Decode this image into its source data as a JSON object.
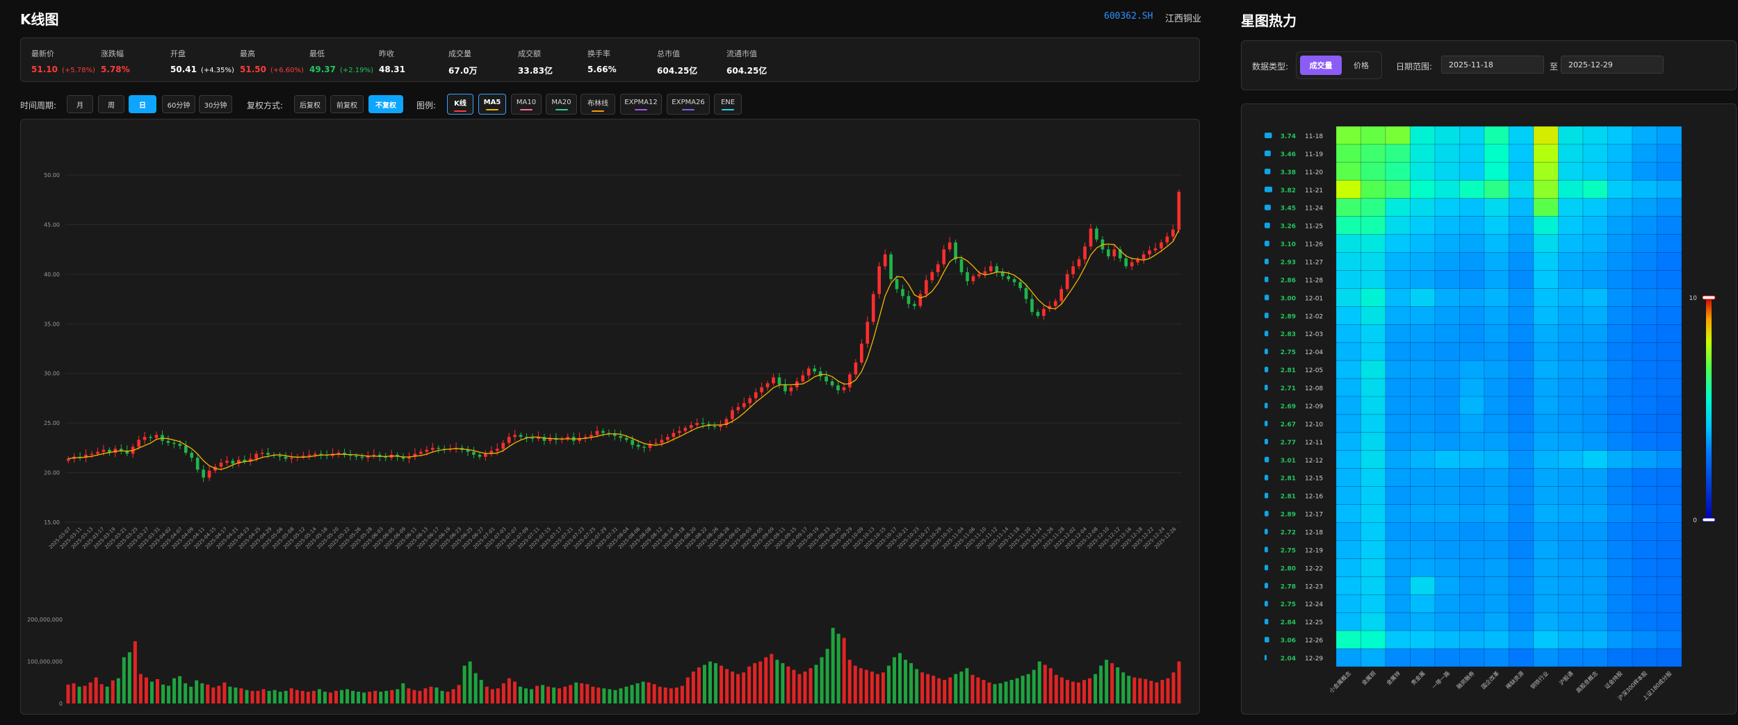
{
  "left_title": "K线图",
  "right_title": "星图热力",
  "stock": {
    "code": "600362.SH",
    "name": "江西铜业"
  },
  "stats": [
    {
      "label": "最新价",
      "value": "51.10",
      "change": "(+5.78%)",
      "color": "red"
    },
    {
      "label": "涨跌幅",
      "value": "5.78%",
      "change": "",
      "color": "red"
    },
    {
      "label": "开盘",
      "value": "50.41",
      "change": "(+4.35%)",
      "color": "white"
    },
    {
      "label": "最高",
      "value": "51.50",
      "change": "(+6.60%)",
      "color": "red"
    },
    {
      "label": "最低",
      "value": "49.37",
      "change": "(+2.19%)",
      "color": "green"
    },
    {
      "label": "昨收",
      "value": "48.31",
      "change": "",
      "color": "white"
    },
    {
      "label": "成交量",
      "value": "67.0万",
      "change": "",
      "color": "white"
    },
    {
      "label": "成交额",
      "value": "33.83亿",
      "change": "",
      "color": "white"
    },
    {
      "label": "换手率",
      "value": "5.66%",
      "change": "",
      "color": "white"
    },
    {
      "label": "总市值",
      "value": "604.25亿",
      "change": "",
      "color": "white"
    },
    {
      "label": "流通市值",
      "value": "604.25亿",
      "change": "",
      "color": "white"
    }
  ],
  "toolbar": {
    "period_label": "时间周期:",
    "periods": [
      "月",
      "周",
      "日",
      "60分钟",
      "30分钟"
    ],
    "period_active": "日",
    "adjust_label": "复权方式:",
    "adjusts": [
      "后复权",
      "前复权",
      "不复权"
    ],
    "adjust_active": "不复权",
    "legend_label": "图例:",
    "legends": [
      {
        "label": "K线",
        "color": "#ff3b3b",
        "active": true
      },
      {
        "label": "MA5",
        "color": "#f5b800",
        "active": true
      },
      {
        "label": "MA10",
        "color": "#ff6b9d",
        "active": false
      },
      {
        "label": "MA20",
        "color": "#22d3a0",
        "active": false
      },
      {
        "label": "布林线",
        "color": "#f59e0b",
        "active": false
      },
      {
        "label": "EXPMA12",
        "color": "#a855f7",
        "active": false
      },
      {
        "label": "EXPMA26",
        "color": "#8b5cf6",
        "active": false
      },
      {
        "label": "ENE",
        "color": "#22d3ee",
        "active": false
      }
    ]
  },
  "kline_axis": {
    "y_ticks": [
      "50.00",
      "45.00",
      "40.00",
      "35.00",
      "30.00",
      "25.00",
      "20.00",
      "15.00"
    ],
    "ylim": [
      15,
      50
    ]
  },
  "volume_axis": {
    "y_ticks": [
      "200,000,000",
      "100,000,000",
      "0"
    ],
    "ylim": [
      0,
      200000000
    ]
  },
  "heatmap_filters": {
    "type_label": "数据类型:",
    "type_options": [
      "成交量",
      "价格"
    ],
    "type_active": "成交量",
    "range_label": "日期范围:",
    "range_sep": "至",
    "start_date": "2025-11-18",
    "end_date": "2025-12-29"
  },
  "chart_data": [
    {
      "type": "candlestick",
      "title": "",
      "x_tick_labels": [
        "2025-03-07",
        "2025-03-11",
        "2025-03-13",
        "2025-03-17",
        "2025-03-19",
        "2025-03-21",
        "2025-03-25",
        "2025-03-27",
        "2025-03-31",
        "2025-04-02",
        "2025-04-07",
        "2025-04-09",
        "2025-04-11",
        "2025-04-15",
        "2025-04-17",
        "2025-04-21",
        "2025-04-23",
        "2025-04-25",
        "2025-04-29",
        "2025-05-06",
        "2025-05-08",
        "2025-05-12",
        "2025-05-14",
        "2025-05-16",
        "2025-05-20",
        "2025-05-22",
        "2025-05-26",
        "2025-05-28",
        "2025-06-03",
        "2025-06-05",
        "2025-06-09",
        "2025-06-11",
        "2025-06-13",
        "2025-06-17",
        "2025-06-19",
        "2025-06-23",
        "2025-06-25",
        "2025-06-27",
        "2025-07-01",
        "2025-07-03",
        "2025-07-07",
        "2025-07-09",
        "2025-07-11",
        "2025-07-15",
        "2025-07-17",
        "2025-07-21",
        "2025-07-23",
        "2025-07-25",
        "2025-07-29",
        "2025-07-31",
        "2025-08-04",
        "2025-08-06",
        "2025-08-08",
        "2025-08-12",
        "2025-08-14",
        "2025-08-18",
        "2025-08-20",
        "2025-08-22",
        "2025-08-26",
        "2025-08-28",
        "2025-09-01",
        "2025-09-03",
        "2025-09-05",
        "2025-09-09",
        "2025-09-11",
        "2025-09-15",
        "2025-09-17",
        "2025-09-19",
        "2025-09-23",
        "2025-09-25",
        "2025-09-29",
        "2025-10-09",
        "2025-10-13",
        "2025-10-15",
        "2025-10-17",
        "2025-10-21",
        "2025-10-23",
        "2025-10-27",
        "2025-10-29",
        "2025-10-31",
        "2025-11-04",
        "2025-11-06",
        "2025-11-10",
        "2025-11-12",
        "2025-11-14",
        "2025-11-18",
        "2025-11-20",
        "2025-11-24",
        "2025-11-26",
        "2025-11-28",
        "2025-12-02",
        "2025-12-04",
        "2025-12-08",
        "2025-12-10",
        "2025-12-12",
        "2025-12-16",
        "2025-12-18",
        "2025-12-22",
        "2025-12-24",
        "2025-12-26"
      ],
      "close": [
        21.4,
        21.6,
        21.5,
        21.8,
        21.9,
        22.1,
        22.3,
        22.0,
        22.4,
        22.2,
        21.9,
        22.6,
        23.3,
        23.6,
        23.5,
        23.8,
        23.2,
        23.0,
        22.9,
        22.7,
        22.0,
        21.5,
        20.3,
        19.5,
        20.2,
        20.6,
        21.0,
        21.2,
        20.9,
        21.3,
        21.1,
        21.4,
        21.9,
        22.0,
        21.8,
        21.7,
        21.6,
        21.4,
        21.5,
        21.6,
        21.7,
        21.8,
        21.9,
        21.8,
        21.7,
        21.9,
        22.0,
        21.8,
        21.7,
        21.6,
        21.5,
        21.7,
        21.8,
        21.6,
        21.5,
        21.8,
        21.6,
        21.4,
        21.6,
        21.9,
        22.1,
        22.3,
        22.5,
        22.4,
        22.3,
        22.4,
        22.5,
        22.3,
        22.1,
        21.8,
        21.6,
        21.9,
        22.2,
        22.4,
        23.0,
        23.6,
        23.8,
        23.6,
        23.5,
        23.4,
        23.6,
        23.2,
        23.5,
        23.3,
        23.4,
        23.6,
        23.2,
        23.5,
        23.6,
        23.8,
        24.2,
        24.0,
        23.9,
        23.7,
        23.5,
        23.3,
        22.8,
        22.6,
        22.5,
        22.9,
        23.0,
        23.3,
        23.6,
        24.0,
        24.2,
        24.5,
        24.8,
        25.0,
        24.9,
        24.7,
        24.6,
        24.8,
        25.4,
        26.3,
        26.6,
        27.0,
        27.5,
        28.1,
        28.6,
        29.0,
        29.6,
        28.9,
        28.2,
        28.6,
        29.2,
        29.8,
        30.5,
        30.2,
        29.7,
        29.2,
        28.8,
        28.3,
        28.6,
        29.9,
        31.1,
        33.0,
        35.2,
        38.0,
        40.8,
        42.0,
        39.5,
        38.5,
        37.8,
        37.0,
        36.8,
        38.0,
        39.4,
        40.2,
        41.0,
        42.5,
        43.2,
        41.5,
        40.2,
        39.3,
        39.8,
        40.0,
        40.3,
        40.8,
        40.2,
        39.8,
        39.5,
        39.2,
        38.6,
        37.5,
        36.2,
        35.8,
        36.5,
        36.8,
        37.3,
        38.5,
        40.0,
        40.8,
        41.5,
        42.8,
        44.6,
        43.5,
        42.5,
        41.8,
        42.5,
        41.6,
        40.8,
        41.2,
        41.5,
        42.0,
        42.4,
        42.6,
        43.2,
        43.8,
        44.5,
        48.3
      ]
    },
    {
      "type": "bar",
      "title": "",
      "series": [
        {
          "values": [
            45,
            48,
            40,
            42,
            50,
            62,
            46,
            40,
            55,
            60,
            110,
            122,
            148,
            70,
            62,
            52,
            58,
            45,
            42,
            60,
            65,
            48,
            40,
            55,
            48,
            45,
            38,
            42,
            50,
            40,
            38,
            36,
            32,
            30,
            30,
            34,
            30,
            32,
            28,
            30,
            36,
            32,
            30,
            28,
            30,
            34,
            28,
            26,
            30,
            32,
            34,
            30,
            28,
            26,
            28,
            30,
            28,
            30,
            32,
            34,
            48,
            36,
            32,
            30,
            36,
            40,
            38,
            30,
            28,
            34,
            44,
            90,
            100,
            72,
            56,
            40,
            34,
            36,
            48,
            60,
            52,
            40,
            36,
            34,
            42,
            44,
            40,
            38,
            36,
            40,
            44,
            50,
            48,
            46,
            40,
            38,
            36,
            34,
            32,
            36,
            40,
            44,
            48,
            52,
            50,
            46,
            40,
            38,
            36,
            38,
            42,
            62,
            76,
            86,
            92,
            100,
            96,
            90,
            82,
            76,
            70,
            74,
            88,
            96,
            100,
            110,
            118,
            104,
            96,
            88,
            80,
            70,
            76,
            84,
            92,
            110,
            130,
            180,
            166,
            156,
            104,
            90,
            84,
            80,
            76,
            70,
            74,
            90,
            110,
            120,
            104,
            96,
            82,
            74,
            70,
            66,
            60,
            56,
            62,
            70,
            76,
            84,
            68,
            62,
            56,
            50,
            46,
            48,
            52,
            56,
            60,
            66,
            70,
            80,
            100,
            92,
            84,
            68,
            62,
            56,
            52,
            50,
            56,
            60,
            70,
            90,
            104,
            96,
            86,
            74,
            66,
            62,
            60,
            58,
            54,
            50,
            56,
            60,
            74,
            100
          ]
        }
      ]
    },
    {
      "type": "heatmap",
      "title": "",
      "rows": [
        "11-18",
        "11-19",
        "11-20",
        "11-21",
        "11-24",
        "11-25",
        "11-26",
        "11-27",
        "11-28",
        "12-01",
        "12-02",
        "12-03",
        "12-04",
        "12-05",
        "12-08",
        "12-09",
        "12-10",
        "12-11",
        "12-12",
        "12-15",
        "12-16",
        "12-17",
        "12-18",
        "12-19",
        "12-22",
        "12-23",
        "12-24",
        "12-25",
        "12-26",
        "12-29"
      ],
      "row_values": [
        "3.74",
        "3.46",
        "3.38",
        "3.82",
        "3.45",
        "3.26",
        "3.10",
        "2.93",
        "2.86",
        "3.00",
        "2.89",
        "2.83",
        "2.75",
        "2.81",
        "2.71",
        "2.69",
        "2.67",
        "2.77",
        "3.01",
        "2.81",
        "2.81",
        "2.89",
        "2.72",
        "2.75",
        "2.80",
        "2.78",
        "2.75",
        "2.84",
        "3.06",
        "2.04"
      ],
      "columns": [
        "小金属概念",
        "金属铜",
        "金属锌",
        "贵金属",
        "一带一路",
        "融资融券",
        "国企改革",
        "稀缺资源",
        "铜铁行业",
        "沪股通",
        "高股息概念",
        "证金持股",
        "沪深300样本股",
        "上证180成分股"
      ],
      "scale": {
        "min": 0,
        "max": 10,
        "min_label": "0",
        "max_label": "10"
      },
      "values": [
        [
          7.2,
          7.0,
          7.2,
          5.2,
          4.8,
          4.5,
          5.8,
          4.4,
          8.2,
          4.8,
          4.5,
          4.2,
          3.8,
          3.6
        ],
        [
          6.8,
          6.5,
          6.2,
          5.0,
          4.6,
          4.4,
          5.5,
          4.2,
          7.8,
          4.6,
          4.4,
          4.0,
          3.6,
          3.4
        ],
        [
          6.9,
          6.4,
          6.0,
          4.9,
          4.5,
          4.3,
          5.4,
          4.1,
          7.6,
          4.5,
          4.3,
          3.9,
          3.5,
          3.3
        ],
        [
          8.0,
          6.8,
          6.5,
          5.5,
          5.0,
          5.6,
          6.2,
          4.6,
          7.4,
          5.2,
          5.6,
          4.3,
          4.0,
          3.8
        ],
        [
          6.5,
          6.2,
          5.0,
          4.6,
          4.3,
          4.1,
          4.6,
          4.0,
          6.9,
          4.4,
          4.2,
          3.8,
          3.6,
          3.4
        ],
        [
          5.8,
          5.8,
          4.6,
          4.3,
          4.0,
          3.9,
          4.3,
          3.8,
          5.2,
          4.2,
          4.0,
          3.6,
          3.4,
          3.2
        ],
        [
          4.8,
          4.9,
          4.2,
          4.0,
          3.8,
          3.7,
          4.0,
          3.6,
          4.6,
          4.0,
          3.9,
          3.5,
          3.3,
          3.1
        ],
        [
          4.5,
          4.6,
          3.9,
          3.8,
          3.6,
          3.5,
          3.8,
          3.4,
          4.3,
          3.8,
          3.7,
          3.4,
          3.2,
          3.0
        ],
        [
          4.4,
          4.5,
          3.8,
          3.7,
          3.5,
          3.4,
          3.7,
          3.3,
          4.2,
          3.7,
          3.6,
          3.3,
          3.1,
          3.0
        ],
        [
          4.6,
          5.2,
          4.0,
          4.4,
          3.8,
          3.7,
          3.9,
          3.5,
          4.1,
          3.9,
          4.0,
          3.4,
          3.2,
          3.1
        ],
        [
          4.2,
          4.8,
          3.8,
          3.8,
          3.6,
          3.5,
          3.7,
          3.4,
          4.0,
          3.7,
          3.8,
          3.3,
          3.1,
          3.0
        ],
        [
          4.0,
          4.4,
          3.6,
          3.6,
          3.5,
          3.4,
          3.6,
          3.3,
          3.8,
          3.6,
          3.6,
          3.2,
          3.0,
          2.9
        ],
        [
          3.9,
          4.3,
          3.5,
          3.5,
          3.4,
          3.4,
          3.5,
          3.2,
          3.7,
          3.5,
          3.5,
          3.1,
          3.0,
          2.9
        ],
        [
          4.0,
          4.8,
          3.6,
          3.6,
          3.5,
          3.7,
          3.6,
          3.3,
          3.8,
          3.6,
          3.6,
          3.2,
          3.0,
          2.9
        ],
        [
          3.9,
          4.6,
          3.5,
          3.5,
          3.4,
          3.8,
          3.5,
          3.2,
          3.7,
          3.5,
          3.5,
          3.1,
          3.0,
          2.9
        ],
        [
          3.8,
          4.5,
          3.5,
          3.5,
          3.4,
          3.9,
          3.5,
          3.2,
          3.7,
          3.5,
          3.4,
          3.1,
          3.0,
          2.8
        ],
        [
          3.8,
          4.4,
          3.5,
          3.5,
          3.4,
          3.7,
          3.5,
          3.2,
          3.6,
          3.5,
          3.4,
          3.1,
          2.9,
          2.8
        ],
        [
          3.9,
          4.5,
          3.5,
          3.6,
          3.5,
          3.6,
          3.6,
          3.3,
          3.7,
          3.6,
          3.5,
          3.2,
          3.0,
          2.9
        ],
        [
          4.0,
          4.6,
          3.7,
          3.9,
          4.1,
          4.0,
          3.9,
          3.4,
          3.9,
          4.0,
          4.3,
          3.8,
          3.6,
          3.4
        ],
        [
          3.9,
          4.4,
          3.6,
          3.6,
          3.6,
          3.5,
          3.6,
          3.3,
          3.7,
          3.6,
          3.6,
          3.2,
          3.0,
          2.9
        ],
        [
          3.9,
          4.3,
          3.5,
          3.6,
          3.6,
          3.5,
          3.6,
          3.3,
          3.7,
          3.6,
          3.6,
          3.2,
          3.0,
          2.9
        ],
        [
          4.0,
          4.4,
          3.6,
          3.7,
          3.7,
          3.6,
          3.7,
          3.3,
          3.8,
          3.7,
          3.7,
          3.3,
          3.1,
          3.0
        ],
        [
          3.8,
          4.3,
          3.5,
          3.5,
          3.5,
          3.4,
          3.5,
          3.2,
          3.6,
          3.5,
          3.5,
          3.1,
          3.0,
          2.9
        ],
        [
          3.9,
          4.3,
          3.6,
          3.6,
          3.5,
          3.5,
          3.5,
          3.2,
          3.7,
          3.5,
          3.5,
          3.2,
          3.0,
          2.9
        ],
        [
          4.0,
          4.4,
          3.6,
          3.7,
          3.6,
          3.5,
          3.6,
          3.3,
          3.7,
          3.6,
          3.6,
          3.2,
          3.0,
          2.9
        ],
        [
          4.1,
          4.4,
          3.6,
          4.5,
          3.7,
          3.5,
          3.6,
          3.3,
          3.7,
          3.6,
          3.6,
          3.2,
          3.0,
          2.9
        ],
        [
          4.0,
          4.3,
          3.6,
          4.0,
          3.6,
          3.5,
          3.6,
          3.3,
          3.7,
          3.6,
          3.6,
          3.2,
          3.0,
          2.9
        ],
        [
          4.0,
          4.5,
          3.6,
          3.8,
          3.6,
          3.5,
          3.7,
          3.3,
          3.8,
          3.6,
          3.6,
          3.2,
          3.0,
          2.9
        ],
        [
          5.6,
          5.4,
          4.2,
          4.2,
          4.0,
          3.9,
          4.0,
          3.6,
          4.2,
          3.9,
          3.9,
          3.5,
          3.3,
          3.1
        ],
        [
          3.6,
          3.8,
          3.3,
          3.3,
          3.2,
          3.2,
          3.3,
          3.0,
          3.4,
          3.2,
          3.2,
          2.9,
          2.8,
          2.7
        ]
      ]
    }
  ]
}
